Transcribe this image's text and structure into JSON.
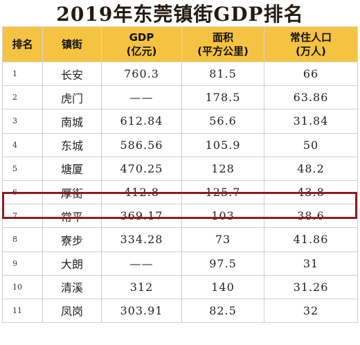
{
  "title": "2019年东莞镇街GDP排名",
  "headers": {
    "rank": "排名",
    "town": "镇街",
    "gdp": [
      "GDP",
      "(亿元)"
    ],
    "area": [
      "面积",
      "(平方公里)"
    ],
    "population": [
      "常住人口",
      "(万人)"
    ]
  },
  "rows": [
    {
      "rank": "1",
      "town": "长安",
      "gdp": "760.3",
      "area": "81.5",
      "population": "66"
    },
    {
      "rank": "2",
      "town": "虎门",
      "gdp": "——",
      "area": "178.5",
      "population": "63.86"
    },
    {
      "rank": "3",
      "town": "南城",
      "gdp": "612.84",
      "area": "56.6",
      "population": "31.84"
    },
    {
      "rank": "4",
      "town": "东城",
      "gdp": "586.56",
      "area": "105.9",
      "population": "50"
    },
    {
      "rank": "5",
      "town": "塘厦",
      "gdp": "470.25",
      "area": "128",
      "population": "48.2"
    },
    {
      "rank": "6",
      "town": "厚街",
      "gdp": "412.8",
      "area": "125.7",
      "population": "43.8"
    },
    {
      "rank": "7",
      "town": "常平",
      "gdp": "369.17",
      "area": "103",
      "population": "38.6"
    },
    {
      "rank": "8",
      "town": "寮步",
      "gdp": "334.28",
      "area": "73",
      "population": "41.86"
    },
    {
      "rank": "9",
      "town": "大朗",
      "gdp": "——",
      "area": "97.5",
      "population": "31"
    },
    {
      "rank": "10",
      "town": "清溪",
      "gdp": "312",
      "area": "140",
      "population": "31.26"
    },
    {
      "rank": "11",
      "town": "凤岗",
      "gdp": "303.91",
      "area": "82.5",
      "population": "32"
    }
  ],
  "colors": {
    "header_bg": "#f5c342",
    "highlight_border": "#8d1b1f"
  }
}
